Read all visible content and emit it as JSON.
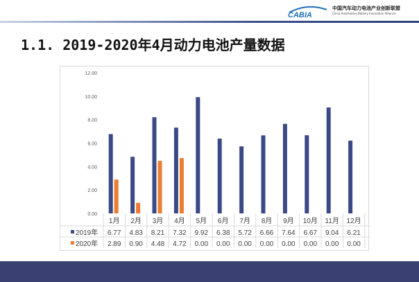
{
  "header": {
    "org_name": "中国汽车动力电池产业创新联盟",
    "org_name_en": "China Automotive Battery Innovation Alliance",
    "logo_text": "CABIA"
  },
  "title": "1.1. 2019-2020年4月动力电池产量数据",
  "colors": {
    "series_2019": "#3b4a86",
    "series_2020": "#ed7d31",
    "footer": "#3a4172"
  },
  "chart_data": {
    "type": "bar",
    "categories": [
      "1月",
      "2月",
      "3月",
      "4月",
      "5月",
      "6月",
      "7月",
      "8月",
      "9月",
      "10月",
      "11月",
      "12月"
    ],
    "series": [
      {
        "name": "2019年",
        "values": [
          6.77,
          4.83,
          8.21,
          7.32,
          9.92,
          6.38,
          5.72,
          6.66,
          7.64,
          6.67,
          9.04,
          6.21
        ],
        "labels": [
          "6.77",
          "4.83",
          "8.21",
          "7.32",
          "9.92",
          "6.38",
          "5.72",
          "6.66",
          "7.64",
          "6.67",
          "9.04",
          "6.21"
        ]
      },
      {
        "name": "2020年",
        "values": [
          2.89,
          0.9,
          4.48,
          4.72,
          0,
          0,
          0,
          0,
          0,
          0,
          0,
          0
        ],
        "labels": [
          "2.89",
          "0.90",
          "4.48",
          "4.72",
          "0.00",
          "0.00",
          "0.00",
          "0.00",
          "0.00",
          "0.00",
          "0.00",
          "0.00"
        ]
      }
    ],
    "yticks": [
      "0.00",
      "2.00",
      "4.00",
      "6.00",
      "8.00",
      "10.00",
      "12.00"
    ],
    "ylim": [
      0,
      12
    ],
    "grid": false,
    "legend": "data-table"
  }
}
